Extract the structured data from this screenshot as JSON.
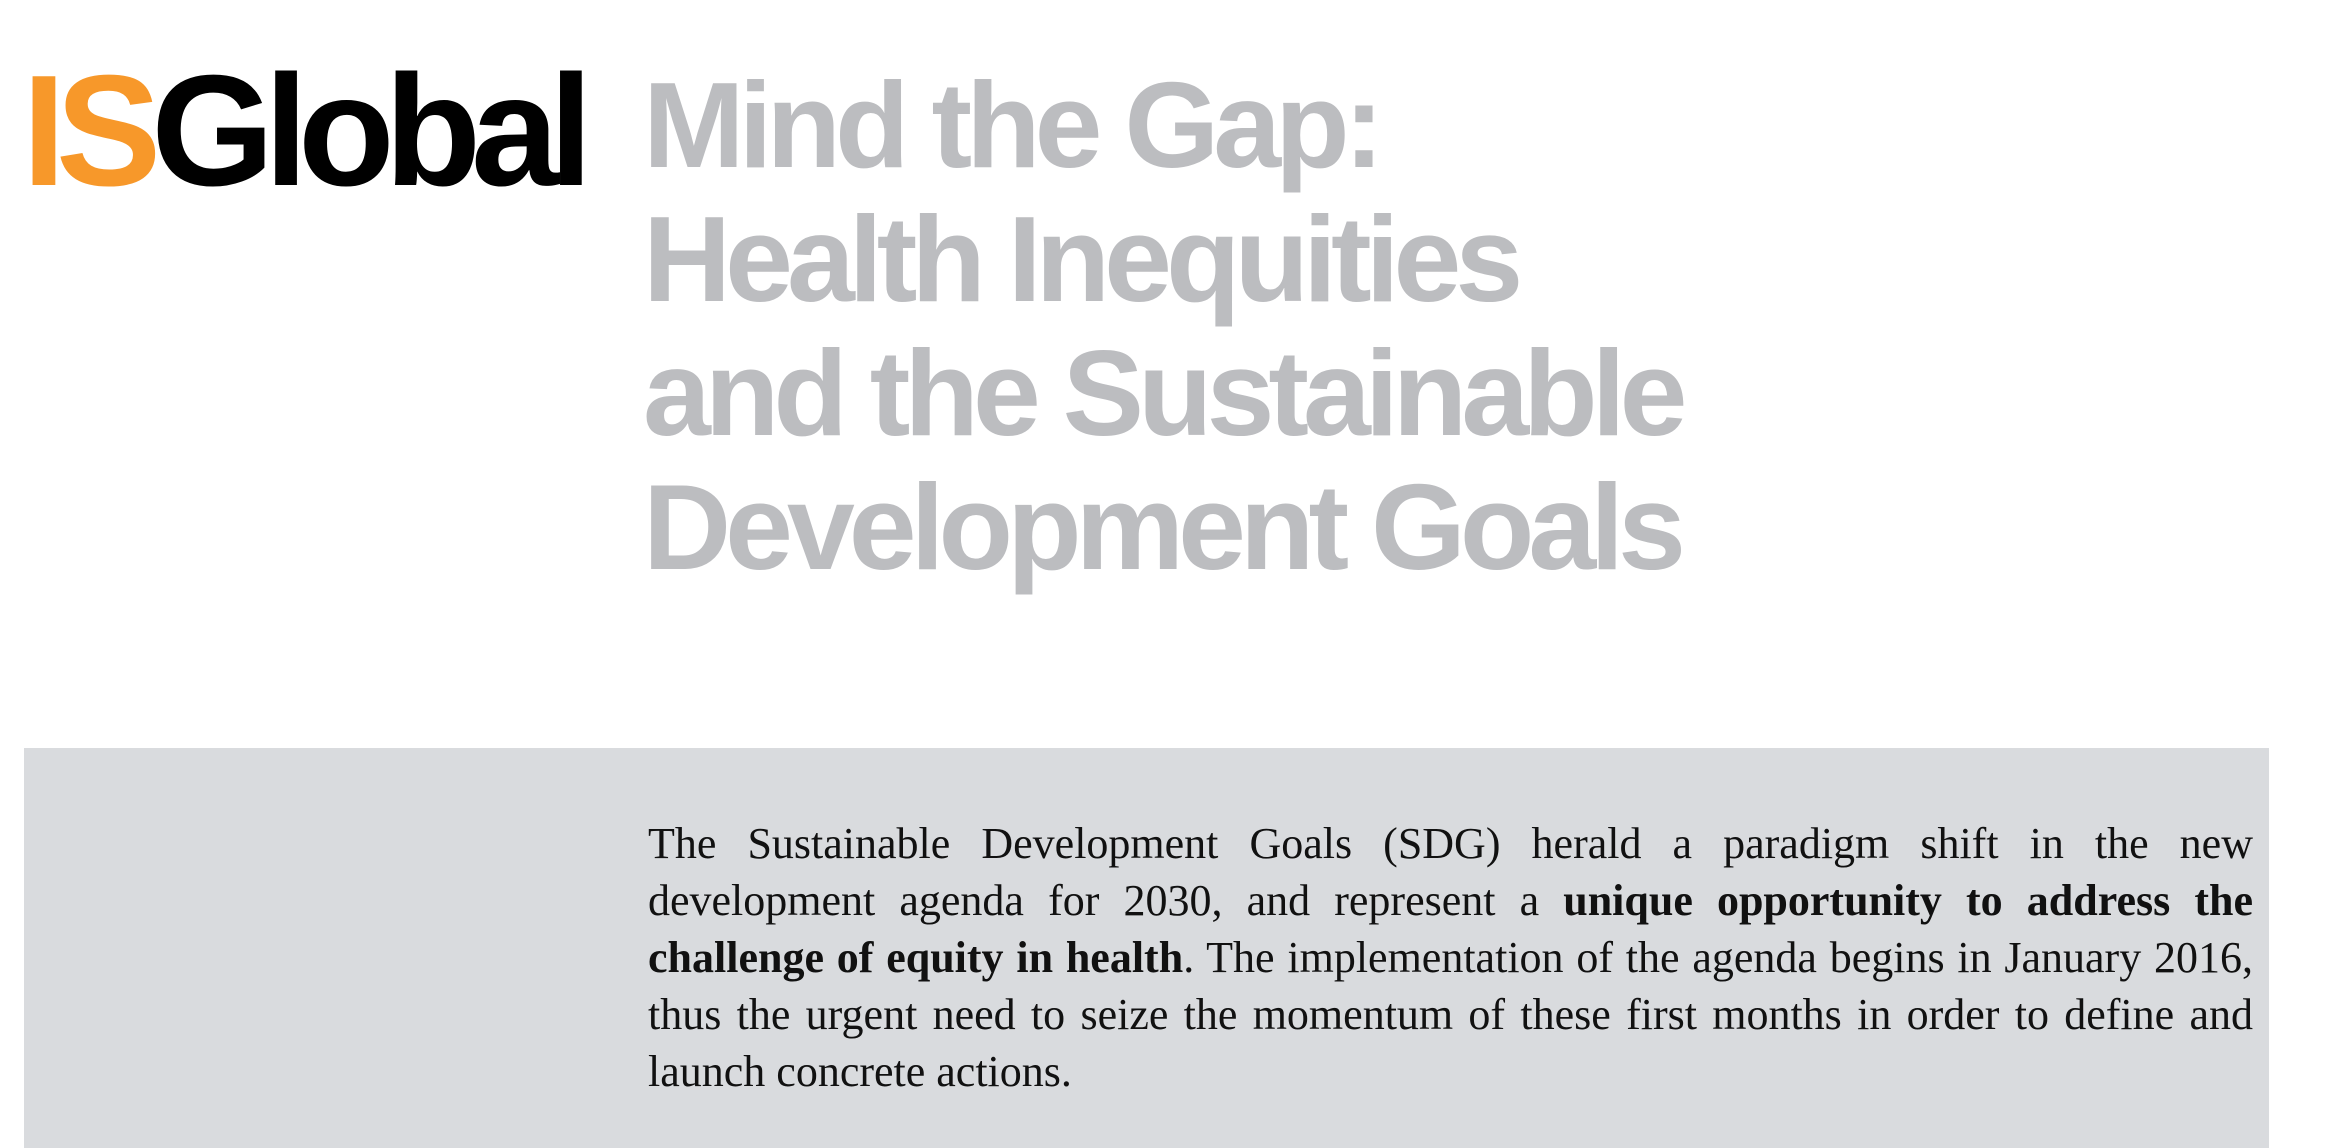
{
  "logo": {
    "part1": "IS",
    "part2": "Global",
    "accent_color": "#f7982a"
  },
  "title": {
    "lines": [
      "Mind the Gap:",
      "Health Inequities",
      "and the Sustainable",
      "Development Goals"
    ],
    "color": "#bcbdc0"
  },
  "intro": {
    "text1": "The Sustainable Development Goals (SDG) herald a paradigm shift in the new development agenda for 2030, and represent a ",
    "bold": "unique opportunity to address the challenge of equity in health",
    "text2": ". The implementation of the agenda begins in January 2016, thus the urgent need to seize the momentum of these first months in order to define and launch concrete actions.",
    "background": "#d9dbde"
  }
}
